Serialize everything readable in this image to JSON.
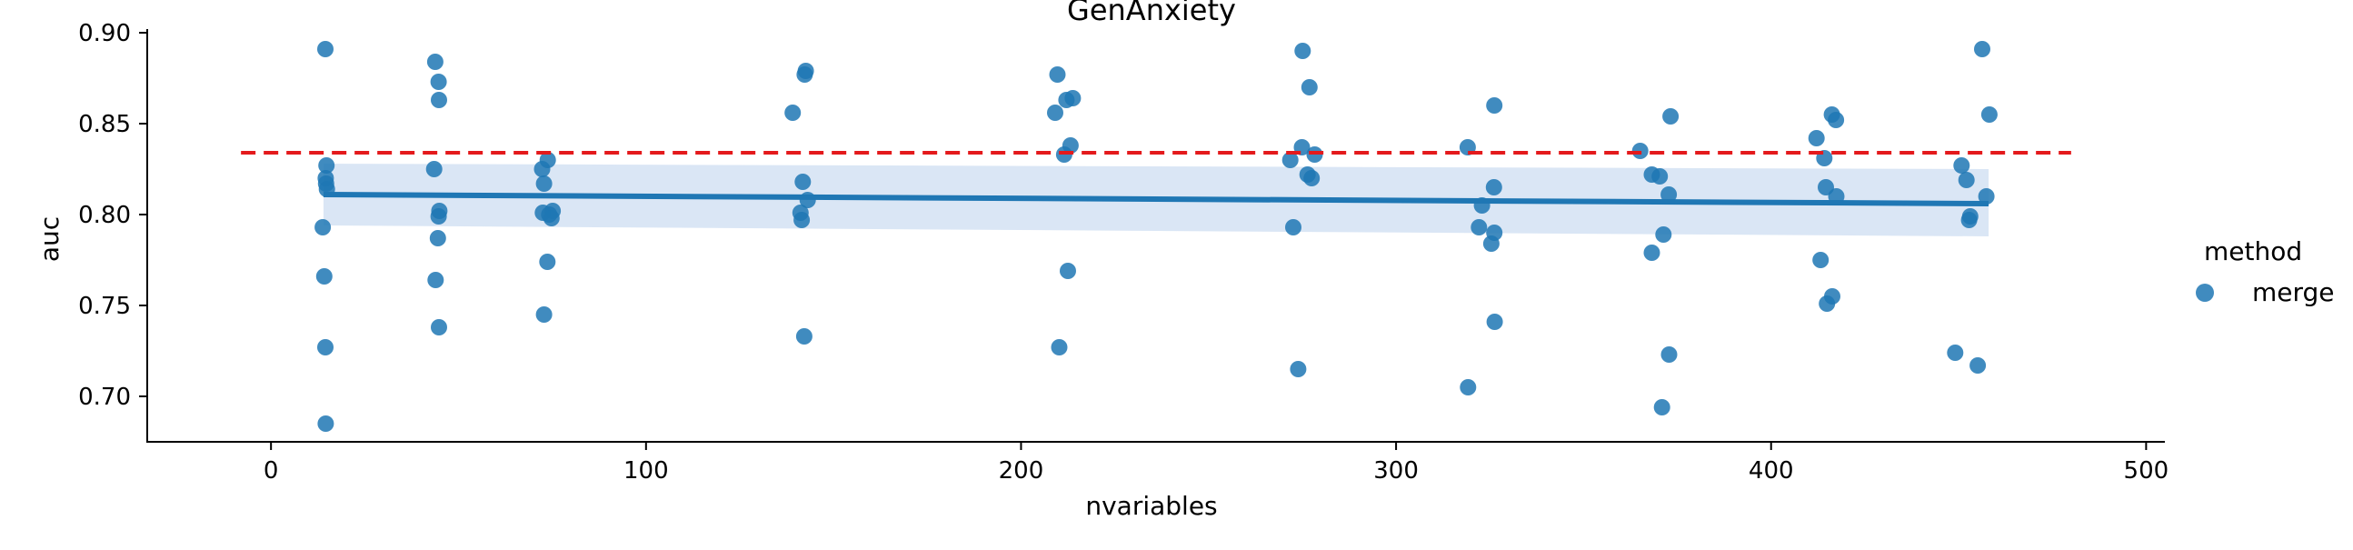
{
  "colors": {
    "series": "#1f77b4",
    "reference_line": "#e41a1c",
    "ci_band": "#aec7e8",
    "axis": "#000000"
  },
  "chart_data": {
    "type": "scatter",
    "title": "GenAnxiety",
    "xlabel": "nvariables",
    "ylabel": "auc",
    "xlim": [
      -33,
      505
    ],
    "ylim": [
      0.675,
      0.902
    ],
    "xticks": [
      0,
      100,
      200,
      300,
      400,
      500
    ],
    "yticks": [
      0.7,
      0.75,
      0.8,
      0.85,
      0.9
    ],
    "xtick_labels": [
      "0",
      "100",
      "200",
      "300",
      "400",
      "500"
    ],
    "ytick_labels": [
      "0.70",
      "0.75",
      "0.80",
      "0.85",
      "0.90"
    ],
    "grid": false,
    "legend": {
      "title": "method",
      "placement": "right",
      "entries": [
        "merge"
      ]
    },
    "series": [
      {
        "name": "merge",
        "points": [
          [
            14.5,
            0.891
          ],
          [
            14.8,
            0.827
          ],
          [
            14.6,
            0.82
          ],
          [
            14.9,
            0.814
          ],
          [
            14.7,
            0.817
          ],
          [
            13.8,
            0.793
          ],
          [
            14.2,
            0.766
          ],
          [
            14.5,
            0.727
          ],
          [
            14.6,
            0.685
          ],
          [
            43.8,
            0.884
          ],
          [
            44.7,
            0.873
          ],
          [
            44.8,
            0.863
          ],
          [
            43.5,
            0.825
          ],
          [
            44.9,
            0.802
          ],
          [
            44.7,
            0.799
          ],
          [
            44.5,
            0.787
          ],
          [
            43.9,
            0.764
          ],
          [
            44.8,
            0.738
          ],
          [
            72.3,
            0.825
          ],
          [
            73.8,
            0.83
          ],
          [
            72.8,
            0.817
          ],
          [
            72.5,
            0.801
          ],
          [
            74.2,
            0.8
          ],
          [
            75.1,
            0.802
          ],
          [
            74.8,
            0.798
          ],
          [
            73.7,
            0.774
          ],
          [
            72.8,
            0.745
          ],
          [
            139.1,
            0.856
          ],
          [
            142.6,
            0.879
          ],
          [
            142.3,
            0.877
          ],
          [
            141.8,
            0.818
          ],
          [
            143.1,
            0.808
          ],
          [
            141.2,
            0.801
          ],
          [
            141.5,
            0.797
          ],
          [
            142.2,
            0.733
          ],
          [
            209.7,
            0.877
          ],
          [
            209.1,
            0.856
          ],
          [
            212.1,
            0.863
          ],
          [
            213.8,
            0.864
          ],
          [
            213.2,
            0.838
          ],
          [
            211.5,
            0.833
          ],
          [
            212.5,
            0.769
          ],
          [
            210.2,
            0.727
          ],
          [
            275.1,
            0.89
          ],
          [
            276.9,
            0.87
          ],
          [
            271.8,
            0.83
          ],
          [
            274.9,
            0.837
          ],
          [
            276.4,
            0.822
          ],
          [
            277.5,
            0.82
          ],
          [
            278.3,
            0.833
          ],
          [
            272.6,
            0.793
          ],
          [
            273.9,
            0.715
          ],
          [
            319.1,
            0.837
          ],
          [
            326.2,
            0.86
          ],
          [
            326.1,
            0.815
          ],
          [
            322.9,
            0.805
          ],
          [
            322.1,
            0.793
          ],
          [
            326.2,
            0.79
          ],
          [
            325.4,
            0.784
          ],
          [
            326.3,
            0.741
          ],
          [
            319.2,
            0.705
          ],
          [
            365.1,
            0.835
          ],
          [
            373.2,
            0.854
          ],
          [
            368.2,
            0.822
          ],
          [
            370.3,
            0.821
          ],
          [
            372.7,
            0.811
          ],
          [
            371.3,
            0.789
          ],
          [
            368.2,
            0.779
          ],
          [
            372.8,
            0.723
          ],
          [
            370.9,
            0.694
          ],
          [
            412.1,
            0.842
          ],
          [
            416.2,
            0.855
          ],
          [
            417.3,
            0.852
          ],
          [
            414.2,
            0.831
          ],
          [
            414.6,
            0.815
          ],
          [
            417.4,
            0.81
          ],
          [
            413.2,
            0.775
          ],
          [
            416.3,
            0.755
          ],
          [
            414.9,
            0.751
          ],
          [
            450.8,
            0.827
          ],
          [
            452.1,
            0.819
          ],
          [
            456.3,
            0.891
          ],
          [
            458.2,
            0.855
          ],
          [
            457.4,
            0.81
          ],
          [
            453.1,
            0.799
          ],
          [
            452.8,
            0.797
          ],
          [
            449.1,
            0.724
          ],
          [
            455.1,
            0.717
          ]
        ]
      }
    ],
    "regression": {
      "x": [
        14,
        458
      ],
      "y": [
        0.811,
        0.806
      ],
      "ci_upper": [
        0.828,
        0.825
      ],
      "ci_lower": [
        0.794,
        0.788
      ]
    },
    "reference_line": {
      "style": "dashed",
      "y": 0.834,
      "x_range": [
        -8,
        480
      ]
    }
  }
}
